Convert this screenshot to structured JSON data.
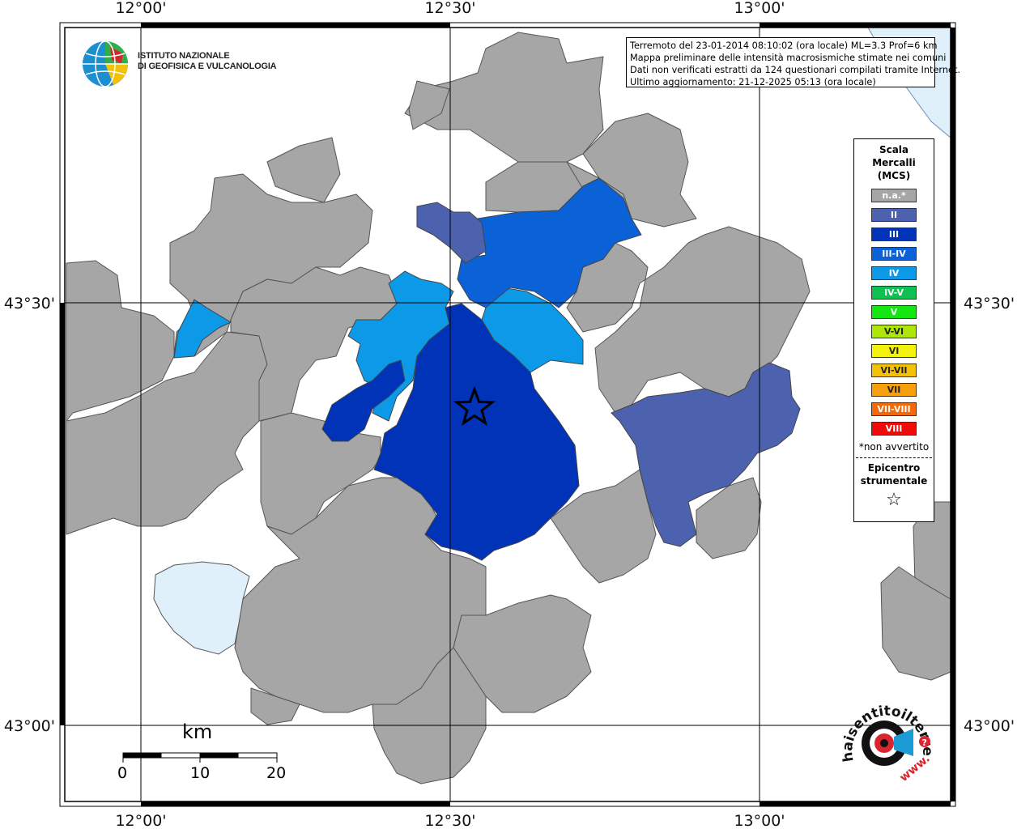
{
  "header": {
    "event_line": "Terremoto del 23-01-2014 08:10:02 (ora locale) ML=3.3 Prof=6 km",
    "map_line": "Mappa preliminare delle intensità macrosismiche stimate nei comuni",
    "data_line": "Dati non verificati estratti da 124 questionari compilati tramite Internet.",
    "update_line": "Ultimo aggiornamento: 21-12-2025 05:13 (ora locale)"
  },
  "institute": {
    "line1": "ISTITUTO NAZIONALE",
    "line2": "DI GEOFISICA E VULCANOLOGIA"
  },
  "axes": {
    "top_labels": [
      "12°00'",
      "12°30'",
      "13°00'"
    ],
    "bottom_labels": [
      "12°00'",
      "12°30'",
      "13°00'"
    ],
    "left_labels": [
      "43°30'",
      "43°00'"
    ],
    "right_labels": [
      "43°30'",
      "43°00'"
    ]
  },
  "legend": {
    "title_line1": "Scala",
    "title_line2": "Mercalli",
    "title_line3": "(MCS)",
    "items": [
      {
        "label": "n.a.*",
        "color": "#a6a6a6"
      },
      {
        "label": "II",
        "color": "#4c62ae"
      },
      {
        "label": "III",
        "color": "#0033b8"
      },
      {
        "label": "III-IV",
        "color": "#0a62d6"
      },
      {
        "label": "IV",
        "color": "#0c9ae8"
      },
      {
        "label": "IV-V",
        "color": "#0fbf52"
      },
      {
        "label": "V",
        "color": "#14e614"
      },
      {
        "label": "V-VI",
        "color": "#aee60a"
      },
      {
        "label": "VI",
        "color": "#f2f20a"
      },
      {
        "label": "VI-VII",
        "color": "#f2c20a"
      },
      {
        "label": "VII",
        "color": "#f5a00a"
      },
      {
        "label": "VII-VIII",
        "color": "#f2680a"
      },
      {
        "label": "VIII",
        "color": "#f00a0a"
      }
    ],
    "note": "*non avvertito",
    "epicenter_line1": "Epicentro",
    "epicenter_line2": "strumentale",
    "epicenter_symbol": "☆"
  },
  "scale_bar": {
    "unit": "km",
    "ticks": [
      "0",
      "10",
      "20"
    ]
  },
  "logo_hsit": {
    "ring_text": "haisentitoilterremoto.it",
    "url_text": "www."
  },
  "colors": {
    "not_available": "#a6a6a6",
    "II": "#4c62ae",
    "III": "#0033b8",
    "III_IV": "#0a62d6",
    "IV": "#0c9ae8",
    "water": "#dff0fb",
    "border": "#555555"
  }
}
